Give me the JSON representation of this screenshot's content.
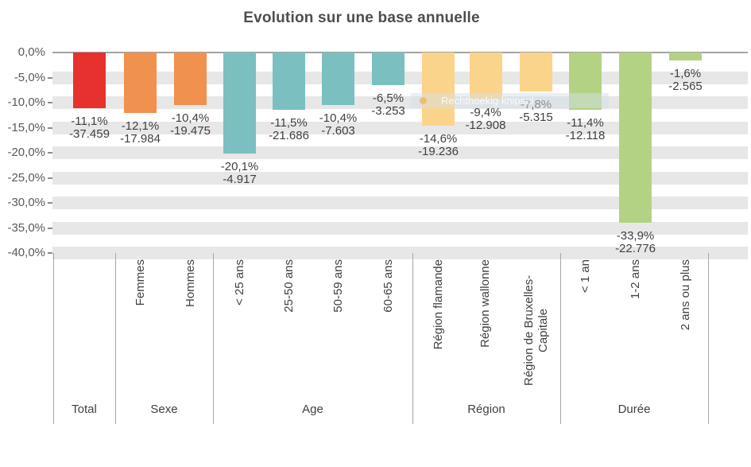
{
  "title": "Evolution sur une base annuelle",
  "overlay": {
    "icon": "circle-icon",
    "text": "Rechthoekig knipsel"
  },
  "colors": {
    "total": "#e7312e",
    "sexe": "#f0914e",
    "age": "#7bbfc0",
    "region": "#fbd48b",
    "duree": "#b3d283",
    "stripe": "#e7e7e7",
    "axis_line": "#a3a3a3",
    "text": "#404040"
  },
  "chart_data": {
    "type": "bar",
    "title": "Evolution sur une base annuelle",
    "xlabel": "",
    "ylabel": "",
    "ylim": [
      -40,
      0
    ],
    "grid": "horizontal gray stripes centered on each 5% tick",
    "legend": "none",
    "value_labels": "percentage and absolute value below each bar",
    "ytick_labels": [
      "0,0%",
      "-5,0%",
      "-10,0%",
      "-15,0%",
      "-20,0%",
      "-25,0%",
      "-30,0%",
      "-35,0%",
      "-40,0%"
    ],
    "ytick_values": [
      0,
      -5,
      -10,
      -15,
      -20,
      -25,
      -30,
      -35,
      -40
    ],
    "groups": [
      {
        "label": "Total",
        "color": "#e7312e",
        "bars": [
          {
            "category": "Total",
            "pct": -11.1,
            "pct_label": "-11,1%",
            "abs": -37459,
            "abs_label": "-37.459"
          }
        ]
      },
      {
        "label": "Sexe",
        "color": "#f0914e",
        "bars": [
          {
            "category": "Femmes",
            "pct": -12.1,
            "pct_label": "-12,1%",
            "abs": -17984,
            "abs_label": "-17.984"
          },
          {
            "category": "Hommes",
            "pct": -10.4,
            "pct_label": "-10,4%",
            "abs": -19475,
            "abs_label": "-19.475"
          }
        ]
      },
      {
        "label": "Age",
        "color": "#7bbfc0",
        "bars": [
          {
            "category": "< 25 ans",
            "pct": -20.1,
            "pct_label": "-20,1%",
            "abs": -4917,
            "abs_label": "-4.917"
          },
          {
            "category": "25-50 ans",
            "pct": -11.5,
            "pct_label": "-11,5%",
            "abs": -21686,
            "abs_label": "-21.686"
          },
          {
            "category": "50-59 ans",
            "pct": -10.4,
            "pct_label": "-10,4%",
            "abs": -7603,
            "abs_label": "-7.603"
          },
          {
            "category": "60-65 ans",
            "pct": -6.5,
            "pct_label": "-6,5%",
            "abs": -3253,
            "abs_label": "-3.253"
          }
        ]
      },
      {
        "label": "Région",
        "color": "#fbd48b",
        "bars": [
          {
            "category": "Région flamande",
            "pct": -14.6,
            "pct_label": "-14,6%",
            "abs": -19236,
            "abs_label": "-19.236"
          },
          {
            "category": "Région wallonne",
            "pct": -9.4,
            "pct_label": "-9,4%",
            "abs": -12908,
            "abs_label": "-12.908"
          },
          {
            "category": "Région de Bruxelles-Capitale",
            "pct": -7.8,
            "pct_label": "-7,8%",
            "abs": -5315,
            "abs_label": "-5.315"
          }
        ]
      },
      {
        "label": "Durée",
        "color": "#b3d283",
        "bars": [
          {
            "category": "< 1 an",
            "pct": -11.4,
            "pct_label": "-11,4%",
            "abs": -12118,
            "abs_label": "-12.118"
          },
          {
            "category": "1-2 ans",
            "pct": -33.9,
            "pct_label": "-33,9%",
            "abs": -22776,
            "abs_label": "-22.776"
          },
          {
            "category": "2 ans ou plus",
            "pct": -1.6,
            "pct_label": "-1,6%",
            "abs": -2565,
            "abs_label": "-2.565"
          }
        ]
      }
    ]
  }
}
